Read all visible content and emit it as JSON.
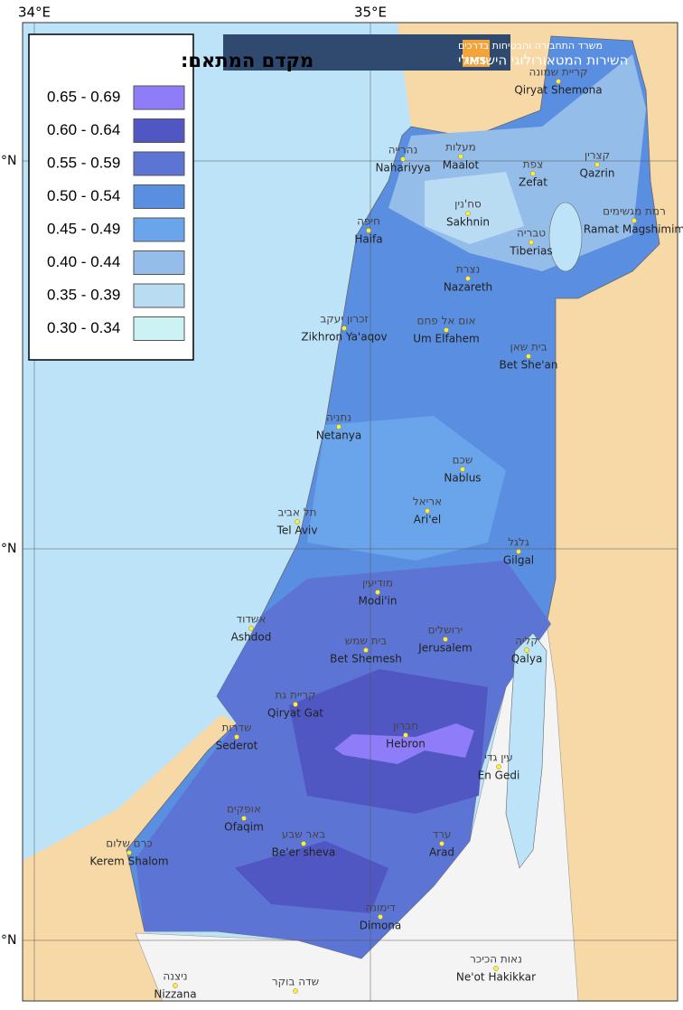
{
  "map": {
    "axis_labels": {
      "lon": [
        "34°E",
        "35°E"
      ],
      "lat": [
        "°N",
        "°N",
        "°N"
      ]
    },
    "logo": {
      "ministry": "משרד התחבורה והבטיחות בדרכים",
      "service": "השירות המטאורולוגי הישראלי",
      "abbr": "IMS"
    },
    "legend": {
      "title": "מקדם המתאם:",
      "items": [
        {
          "label": "0.65 - 0.69",
          "color": "#8f7cf8"
        },
        {
          "label": "0.60 - 0.64",
          "color": "#5157c2"
        },
        {
          "label": "0.55 - 0.59",
          "color": "#5c74d4"
        },
        {
          "label": "0.50 - 0.54",
          "color": "#5a8ee0"
        },
        {
          "label": "0.45 - 0.49",
          "color": "#6aa4ea"
        },
        {
          "label": "0.40 - 0.44",
          "color": "#94bde9"
        },
        {
          "label": "0.35 - 0.39",
          "color": "#b9dcf3"
        },
        {
          "label": "0.30 - 0.34",
          "color": "#cdf2f3"
        }
      ]
    },
    "cities": [
      {
        "he": "קריית שמונה",
        "en": "Qiryat Shemona"
      },
      {
        "he": "נהרייה",
        "en": "Nahariyya"
      },
      {
        "he": "מעלות",
        "en": "Maalot"
      },
      {
        "he": "קצרין",
        "en": "Qazrin"
      },
      {
        "he": "צפת",
        "en": "Zefat"
      },
      {
        "he": "רמת מגשימים",
        "en": "Ramat Magshimim"
      },
      {
        "he": "סח'נין",
        "en": "Sakhnin"
      },
      {
        "he": "חיפה",
        "en": "Haifa"
      },
      {
        "he": "טבריה",
        "en": "Tiberias"
      },
      {
        "he": "נצרת",
        "en": "Nazareth"
      },
      {
        "he": "זכרון יעקב",
        "en": "Zikhron Ya'aqov"
      },
      {
        "he": "אום אל פחם",
        "en": "Um Elfahem"
      },
      {
        "he": "בית שאן",
        "en": "Bet She'an"
      },
      {
        "he": "נתניה",
        "en": "Netanya"
      },
      {
        "he": "שכם",
        "en": "Nablus"
      },
      {
        "he": "אריאל",
        "en": "Ari'el"
      },
      {
        "he": "תל אביב",
        "en": "Tel Aviv"
      },
      {
        "he": "גלגל",
        "en": "Gilgal"
      },
      {
        "he": "מודיעין",
        "en": "Modi'in"
      },
      {
        "he": "אשדוד",
        "en": "Ashdod"
      },
      {
        "he": "ירושלים",
        "en": "Jerusalem"
      },
      {
        "he": "בית שמש",
        "en": "Bet Shemesh"
      },
      {
        "he": "קליה",
        "en": "Qalya"
      },
      {
        "he": "קריית גת",
        "en": "Qiryat Gat"
      },
      {
        "he": "שדרות",
        "en": "Sederot"
      },
      {
        "he": "חברון",
        "en": "Hebron"
      },
      {
        "he": "עין גדי",
        "en": "En Gedi"
      },
      {
        "he": "אופקים",
        "en": "Ofaqim"
      },
      {
        "he": "באר שבע",
        "en": "Be'er sheva"
      },
      {
        "he": "ערד",
        "en": "Arad"
      },
      {
        "he": "כרם שלום",
        "en": "Kerem Shalom"
      },
      {
        "he": "דימונה",
        "en": "Dimona"
      },
      {
        "he": "נאות הכיכר",
        "en": "Ne'ot Hakikkar"
      },
      {
        "he": "ניצנה",
        "en": "Nizzana"
      },
      {
        "he": "שדה בוקר"
      }
    ]
  }
}
